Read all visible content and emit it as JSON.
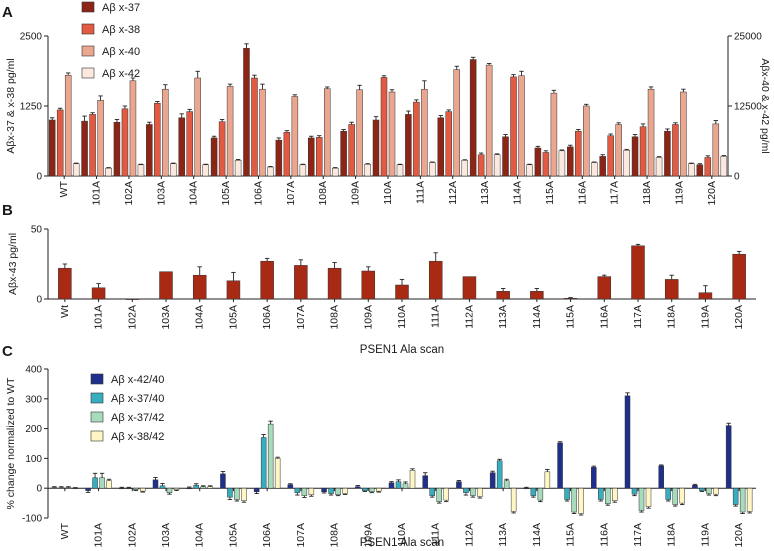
{
  "colors": {
    "ab37": "#8c2515",
    "ab38": "#e15a41",
    "ab40": "#eba690",
    "ab42": "#fbe9df",
    "ab43": "#a82a14",
    "r4240": "#1f2f8c",
    "r3740": "#36aec0",
    "r3742": "#a6dcbc",
    "r3842": "#fff6c4"
  },
  "chart_data": [
    {
      "panel": "A",
      "type": "bar",
      "ylabel_left": "Aβx-37 & x-38 pg/ml",
      "ylabel_right": "Aβx-40 & x-42 pg/ml",
      "ylim_left": [
        0,
        2500
      ],
      "ylim_right": [
        0,
        25000
      ],
      "yticks_left": [
        "0",
        "1250",
        "2500"
      ],
      "yticks_right": [
        "0",
        "12500",
        "25000"
      ],
      "categories": [
        "WT",
        "101A",
        "102A",
        "103A",
        "104A",
        "105A",
        "106A",
        "107A",
        "108A",
        "109A",
        "110A",
        "111A",
        "112A",
        "113A",
        "114A",
        "115A",
        "116A",
        "117A",
        "118A",
        "119A",
        "120A"
      ],
      "series": [
        {
          "name": "Aβ x-37",
          "color": "#8c2515",
          "axis": "left",
          "values": [
            1000,
            980,
            960,
            920,
            1040,
            680,
            2280,
            640,
            680,
            800,
            1000,
            1100,
            1040,
            2080,
            700,
            500,
            520,
            350,
            700,
            800,
            200
          ],
          "errors": [
            40,
            90,
            50,
            40,
            70,
            30,
            80,
            40,
            30,
            30,
            60,
            60,
            40,
            40,
            40,
            30,
            30,
            30,
            40,
            40,
            20
          ]
        },
        {
          "name": "Aβ x-38",
          "color": "#e15a41",
          "axis": "left",
          "values": [
            1180,
            1100,
            1200,
            1300,
            1150,
            970,
            1750,
            780,
            690,
            920,
            1760,
            1320,
            1150,
            380,
            1770,
            420,
            800,
            720,
            880,
            920,
            330
          ],
          "errors": [
            30,
            30,
            50,
            30,
            40,
            40,
            50,
            30,
            30,
            40,
            30,
            40,
            30,
            30,
            40,
            30,
            30,
            30,
            50,
            30,
            30
          ]
        },
        {
          "name": "Aβ x-40",
          "color": "#eba690",
          "axis": "left",
          "values": [
            1800,
            1350,
            1700,
            1550,
            1750,
            1600,
            1550,
            1420,
            1560,
            1540,
            1500,
            1550,
            1900,
            1980,
            1790,
            1480,
            1250,
            920,
            1550,
            1500,
            930
          ],
          "errors": [
            40,
            80,
            50,
            80,
            120,
            40,
            90,
            30,
            30,
            80,
            40,
            150,
            60,
            30,
            80,
            50,
            30,
            30,
            40,
            50,
            60
          ]
        },
        {
          "name": "Aβ x-42",
          "color": "#fbe9df",
          "axis": "left",
          "values": [
            220,
            140,
            200,
            220,
            200,
            280,
            160,
            200,
            140,
            210,
            200,
            240,
            280,
            380,
            200,
            450,
            240,
            460,
            330,
            220,
            350
          ],
          "errors": [
            10,
            10,
            10,
            10,
            10,
            15,
            10,
            10,
            10,
            10,
            10,
            10,
            10,
            15,
            10,
            15,
            10,
            15,
            15,
            10,
            15
          ]
        }
      ],
      "legend_position": "top-left"
    },
    {
      "panel": "B",
      "type": "bar",
      "ylabel": "Aβx-43 pg/ml",
      "xlabel": "PSEN1 Ala scan",
      "ylim": [
        0,
        50
      ],
      "yticks": [
        "0",
        "50"
      ],
      "categories": [
        "Wt",
        "101A",
        "102A",
        "103A",
        "104A",
        "105A",
        "106A",
        "107A",
        "108A",
        "109A",
        "110A",
        "111A",
        "112A",
        "113A",
        "114A",
        "115A",
        "116A",
        "117A",
        "118A",
        "119A",
        "120A"
      ],
      "series": [
        {
          "name": "Aβ x-43",
          "color": "#a82a14",
          "values": [
            22,
            8,
            0,
            19.5,
            17,
            13,
            27,
            24,
            22,
            20,
            10,
            27,
            16,
            5.5,
            5.5,
            0.5,
            16,
            38,
            14,
            4.5,
            32
          ],
          "errors": [
            3,
            3,
            0,
            0,
            6,
            6,
            2,
            4,
            4,
            3,
            4,
            6,
            0,
            2,
            2,
            0.5,
            1,
            1,
            3,
            5,
            2
          ]
        }
      ]
    },
    {
      "panel": "C",
      "type": "bar",
      "ylabel": "% change normalized to WT",
      "xlabel": "PSEN1 Ala scan",
      "ylim": [
        -100,
        400
      ],
      "yticks": [
        "-100",
        "0",
        "100",
        "200",
        "300",
        "400"
      ],
      "categories": [
        "WT",
        "101A",
        "102A",
        "103A",
        "104A",
        "105A",
        "106A",
        "107A",
        "108A",
        "109A",
        "110A",
        "111A",
        "112A",
        "113A",
        "114A",
        "115A",
        "116A",
        "117A",
        "118A",
        "119A",
        "120A"
      ],
      "series": [
        {
          "name": "Aβ x-42/40",
          "color": "#1f2f8c",
          "values": [
            2,
            -8,
            0,
            28,
            0,
            48,
            -12,
            12,
            -12,
            5,
            18,
            42,
            22,
            52,
            0,
            152,
            70,
            310,
            75,
            10,
            210
          ],
          "errors": [
            3,
            6,
            3,
            8,
            4,
            8,
            6,
            3,
            4,
            4,
            4,
            10,
            4,
            5,
            3,
            4,
            4,
            10,
            3,
            3,
            8
          ]
        },
        {
          "name": "Aβ x-37/40",
          "color": "#36aec0",
          "values": [
            2,
            35,
            0,
            8,
            10,
            -30,
            170,
            -15,
            -18,
            -8,
            22,
            -25,
            -15,
            92,
            -25,
            -38,
            -38,
            -20,
            -38,
            -8,
            -55
          ],
          "errors": [
            3,
            15,
            3,
            8,
            5,
            8,
            10,
            8,
            5,
            3,
            6,
            5,
            8,
            5,
            5,
            5,
            5,
            5,
            5,
            3,
            5
          ]
        },
        {
          "name": "Aβ x-37/42",
          "color": "#a6dcbc",
          "values": [
            2,
            35,
            -5,
            -15,
            5,
            -38,
            215,
            -25,
            -22,
            -12,
            15,
            -45,
            -25,
            25,
            -40,
            -80,
            -52,
            -75,
            -55,
            -18,
            -80
          ],
          "errors": [
            3,
            15,
            3,
            5,
            3,
            5,
            10,
            6,
            3,
            3,
            6,
            5,
            5,
            5,
            5,
            5,
            5,
            5,
            5,
            5,
            5
          ]
        },
        {
          "name": "Aβ x-38/42",
          "color": "#fff6c4",
          "values": [
            0,
            25,
            -10,
            -5,
            5,
            -42,
            100,
            -22,
            -18,
            -10,
            60,
            -40,
            -28,
            -78,
            55,
            -85,
            -42,
            -62,
            -50,
            -20,
            -78
          ],
          "errors": [
            2,
            5,
            3,
            3,
            3,
            5,
            4,
            5,
            3,
            3,
            5,
            5,
            5,
            5,
            8,
            5,
            5,
            5,
            5,
            5,
            5
          ]
        }
      ],
      "legend_position": "top-left"
    }
  ],
  "panel_labels": {
    "a": "A",
    "b": "B",
    "c": "C"
  }
}
